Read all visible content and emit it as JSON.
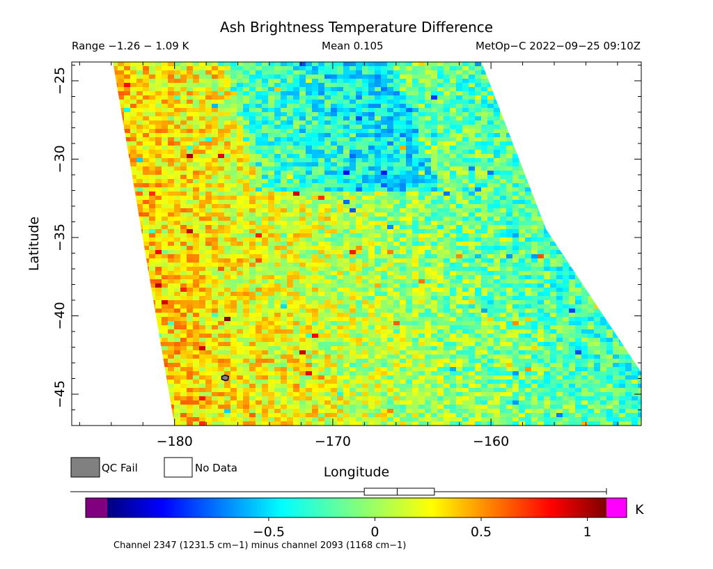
{
  "chart_data": {
    "type": "heatmap",
    "title": "Ash Brightness Temperature Difference",
    "range_text": "Range −1.26 − 1.09 K",
    "mean_text": "Mean 0.105",
    "satellite_text": "MetOp−C 2022−09−25 09:10Z",
    "xlabel": "Longitude",
    "ylabel": "Latitude",
    "xlim": [
      -186.5,
      -150.5
    ],
    "ylim": [
      -47.0,
      -23.8
    ],
    "xticks": [
      {
        "value": -180,
        "label": "−180"
      },
      {
        "value": -170,
        "label": "−170"
      },
      {
        "value": -160,
        "label": "−160"
      }
    ],
    "yticks": [
      {
        "value": -25,
        "label": "−25"
      },
      {
        "value": -30,
        "label": "−30"
      },
      {
        "value": -35,
        "label": "−35"
      },
      {
        "value": -40,
        "label": "−40"
      },
      {
        "value": -45,
        "label": "−45"
      }
    ],
    "swath": {
      "top_left_lon": -183.9,
      "top_right_lon": -160.6,
      "bottom_left_lon": -180.0,
      "bottom_right_lon": -150.5,
      "top_lat": -23.8,
      "bottom_lat": -47.0
    },
    "qc_fail_point": {
      "lon": -176.8,
      "lat": -44.0
    },
    "legend": [
      {
        "label": "QC Fail",
        "color": "#808080"
      },
      {
        "label": "No Data",
        "color": "#ffffff"
      }
    ],
    "colorbar": {
      "min": -1.26,
      "max": 1.09,
      "unit": "K",
      "ticks": [
        {
          "value": -0.5,
          "label": "−0.5"
        },
        {
          "value": 0,
          "label": "0"
        },
        {
          "value": 0.5,
          "label": "0.5"
        },
        {
          "value": 1,
          "label": "1"
        }
      ],
      "under_color": "#800080",
      "over_color": "#ff00ff",
      "mean": 0.105,
      "box_q1": -0.05,
      "box_q3": 0.28,
      "caption": "Channel 2347 (1231.5 cm−1) minus channel 2093 (1168 cm−1)"
    }
  }
}
